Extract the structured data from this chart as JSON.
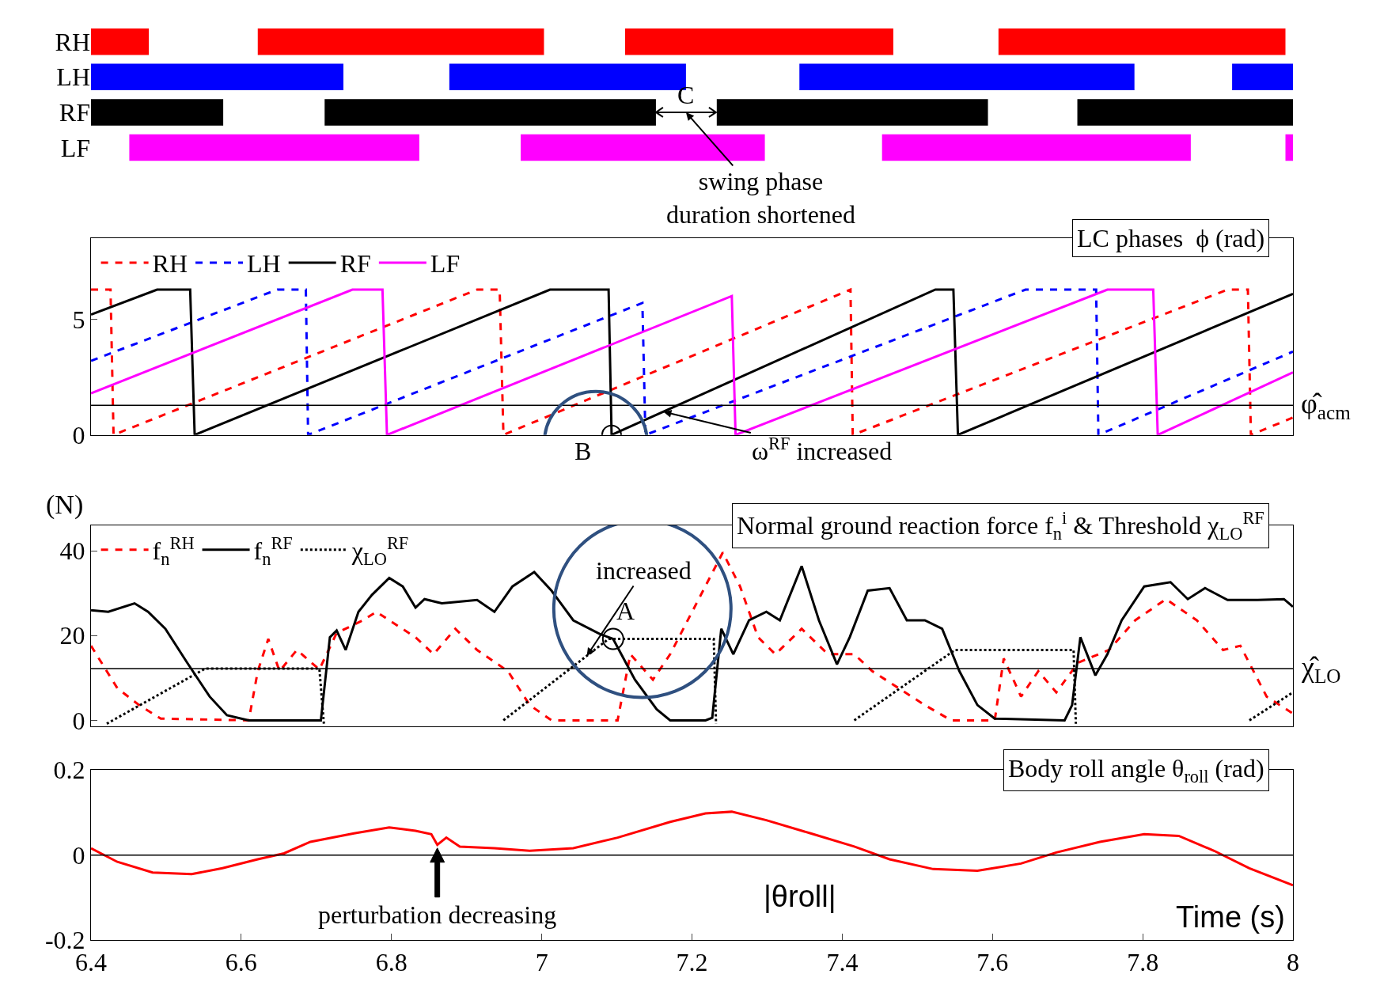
{
  "chart_data": [
    {
      "type": "bar",
      "orientation": "horizontal",
      "categories": [
        "RH",
        "LH",
        "RF",
        "LF"
      ],
      "xlim": [
        6.4,
        8.0
      ],
      "tick_labels": "y",
      "series": [
        {
          "colors": [
            "#ff0000",
            "#0000ff",
            "#000000",
            "#ff00ff"
          ],
          "base": [
            6.4,
            6.4,
            6.4,
            6.451
          ],
          "values": [
            0.077,
            0.336,
            0.176,
            0.386
          ]
        },
        {
          "colors": [
            "#ff0000",
            "#0000ff",
            "#000000",
            "#ff00ff"
          ],
          "base": [
            6.622,
            6.877,
            6.711,
            6.972
          ],
          "values": [
            0.381,
            0.315,
            0.441,
            0.325
          ]
        },
        {
          "colors": [
            "#ff0000",
            "#0000ff",
            "#000000",
            "#ff00ff"
          ],
          "base": [
            7.111,
            7.343,
            7.233,
            7.453
          ],
          "values": [
            0.357,
            0.446,
            0.361,
            0.411
          ]
        },
        {
          "colors": [
            "#ff0000",
            "#0000ff",
            "#000000",
            "#ff00ff"
          ],
          "base": [
            7.608,
            7.919,
            7.713,
            7.99
          ],
          "values": [
            0.382,
            0.081,
            0.287,
            0.01
          ]
        }
      ],
      "annotations": [
        "C",
        "swing phase duration shortened"
      ]
    },
    {
      "type": "line",
      "title": "LC phases  ϕ (rad)",
      "xlim": [
        6.4,
        8.0
      ],
      "ylim": [
        0,
        8.5
      ],
      "yticks": [
        0,
        5
      ],
      "tick_labels": "y",
      "legend": "top left",
      "series": [
        {
          "name": "RH",
          "color": "#ff0000",
          "line_style": "dashed",
          "x": [
            6.4,
            6.426,
            6.43,
            6.914,
            6.944,
            6.949,
            7.411,
            7.414,
            7.913,
            7.94,
            7.944,
            8.0
          ],
          "values": [
            6.28,
            6.28,
            0,
            6.28,
            6.28,
            0,
            6.28,
            0,
            6.28,
            6.28,
            0,
            0.75
          ]
        },
        {
          "name": "LH",
          "color": "#0000ff",
          "line_style": "dashed",
          "x": [
            6.4,
            6.648,
            6.686,
            6.689,
            7.134,
            7.138,
            7.644,
            7.738,
            7.741,
            8.0
          ],
          "values": [
            3.2,
            6.28,
            6.28,
            0,
            5.7,
            0,
            6.28,
            6.28,
            0,
            3.6
          ]
        },
        {
          "name": "RF",
          "color": "#000000",
          "line_style": "solid",
          "x": [
            6.4,
            6.488,
            6.532,
            6.538,
            7.011,
            7.089,
            7.093,
            7.524,
            7.548,
            7.554,
            8.0
          ],
          "values": [
            5.2,
            6.28,
            6.28,
            0,
            6.28,
            6.28,
            0,
            6.28,
            6.28,
            0,
            6.1
          ]
        },
        {
          "name": "LF",
          "color": "#ff00ff",
          "line_style": "solid",
          "x": [
            6.4,
            6.748,
            6.788,
            6.794,
            7.253,
            7.258,
            7.753,
            7.814,
            7.82,
            8.0
          ],
          "values": [
            1.8,
            6.28,
            6.28,
            0,
            6.0,
            0,
            6.28,
            6.28,
            0,
            2.7
          ]
        }
      ],
      "ref_lines": [
        {
          "axis": "y",
          "value": 1.28,
          "label": "φ̂$_{acm}$"
        }
      ],
      "annotations": [
        {
          "text": "B",
          "x": 7.093,
          "y": 0
        },
        {
          "text": "ω$^{RF}$ increased",
          "x": 7.162,
          "y": 1.0
        }
      ]
    },
    {
      "type": "line",
      "title": "Normal ground reaction force f$_{n}$$^{i}$ & Threshold χ$_{LO}$$^{RF}$",
      "ylabel": "(N)",
      "xlim": [
        6.4,
        8.0
      ],
      "ylim": [
        -1.5,
        46
      ],
      "yticks": [
        0,
        20,
        40
      ],
      "tick_labels": "y",
      "legend": "top left",
      "series": [
        {
          "name": "f$_{n}$$^{RH}$",
          "color": "#ff0000",
          "line_style": "dashed",
          "x": [
            6.4,
            6.435,
            6.464,
            6.493,
            6.61,
            6.622,
            6.636,
            6.651,
            6.674,
            6.704,
            6.727,
            6.762,
            6.78,
            6.797,
            6.832,
            6.856,
            6.885,
            6.914,
            6.955,
            6.984,
            7.013,
            7.101,
            7.118,
            7.148,
            7.171,
            7.206,
            7.241,
            7.264,
            7.288,
            7.311,
            7.346,
            7.381,
            7.416,
            7.44,
            7.475,
            7.51,
            7.545,
            7.603,
            7.615,
            7.638,
            7.661,
            7.685,
            7.714,
            7.755,
            7.79,
            7.831,
            7.872,
            7.907,
            7.93,
            7.965,
            8.0
          ],
          "values": [
            17.6,
            7.6,
            3.6,
            0.4,
            0,
            11.6,
            19.2,
            11.6,
            16.6,
            12,
            20.6,
            23.6,
            25.6,
            23.6,
            19.6,
            15.6,
            21.6,
            16.6,
            11.6,
            3.6,
            0,
            0,
            15.6,
            9.6,
            15.6,
            27.6,
            39.6,
            31.6,
            19.6,
            15.6,
            21.6,
            15.6,
            15.6,
            11.6,
            7.6,
            3.6,
            0,
            0,
            14.6,
            5.6,
            11.6,
            6.6,
            13.6,
            16.6,
            23.6,
            28.6,
            23.6,
            16.6,
            17.6,
            5.6,
            1.6
          ]
        },
        {
          "name": "f$_{n}$$^{RF}$",
          "color": "#000000",
          "line_style": "solid",
          "x": [
            6.4,
            6.423,
            6.458,
            6.476,
            6.499,
            6.528,
            6.558,
            6.581,
            6.61,
            6.692,
            6.706,
            6.718,
            6.727,
            6.739,
            6.756,
            6.774,
            6.797,
            6.815,
            6.832,
            6.844,
            6.867,
            6.914,
            6.937,
            6.961,
            6.99,
            7.013,
            7.042,
            7.077,
            7.095,
            7.124,
            7.153,
            7.171,
            7.218,
            7.227,
            7.239,
            7.255,
            7.276,
            7.299,
            7.317,
            7.346,
            7.369,
            7.393,
            7.41,
            7.434,
            7.463,
            7.486,
            7.51,
            7.533,
            7.556,
            7.58,
            7.603,
            7.696,
            7.706,
            7.717,
            7.737,
            7.753,
            7.772,
            7.802,
            7.837,
            7.86,
            7.883,
            7.913,
            7.953,
            7.988,
            8.0
          ],
          "values": [
            26,
            25.6,
            27.6,
            25.6,
            21.6,
            13.6,
            5.6,
            1.2,
            0,
            0,
            0,
            19.6,
            21.2,
            16.6,
            25.6,
            29.6,
            33.6,
            31.6,
            26.6,
            28.6,
            27.6,
            28.4,
            25.6,
            31.6,
            35,
            30.6,
            23.6,
            20.4,
            19.2,
            9.6,
            2.6,
            0,
            0,
            0.6,
            21.6,
            15.6,
            23.6,
            25.6,
            23.6,
            36.4,
            23.6,
            13.2,
            19.6,
            30.6,
            31.2,
            23.6,
            23.6,
            21.6,
            11.6,
            3.6,
            0.4,
            0,
            3.6,
            19.6,
            10.6,
            15.6,
            23.6,
            31.6,
            32.6,
            28.6,
            31.2,
            28.4,
            28.4,
            28.6,
            26.8
          ]
        },
        {
          "name": "χ$_{LO}$$^{RF}$",
          "color": "#000000",
          "line_style": "dotted",
          "x": [
            6.421,
            6.552,
            6.704,
            6.71,
            6.8,
            6.949,
            7.089,
            7.229,
            7.232,
            7.3,
            7.416,
            7.55,
            7.708,
            7.711,
            7.8,
            7.942,
            8.0
          ],
          "values": [
            -0.8,
            12.2,
            12.2,
            -0.8,
            null,
            0,
            19.2,
            19.2,
            -0.8,
            null,
            0,
            16.6,
            16.6,
            -0.8,
            null,
            0,
            6.6
          ]
        }
      ],
      "ref_lines": [
        {
          "axis": "y",
          "value": 12.2,
          "label": "χ̂$_{LO}$"
        }
      ],
      "annotations": [
        {
          "text": "increased",
          "x": 7.06,
          "y": 15.2
        },
        {
          "text": "A",
          "x": 7.095,
          "y": 19.2
        }
      ]
    },
    {
      "type": "line",
      "title": "Body roll angle θ$_{roll}$ (rad)",
      "xlabel": "Time (s)",
      "xlim": [
        6.4,
        8.0
      ],
      "xticks": [
        6.4,
        6.6,
        6.8,
        7,
        7.2,
        7.4,
        7.6,
        7.8,
        8
      ],
      "ylim": [
        -0.2,
        0.2
      ],
      "yticks": [
        -0.2,
        0,
        0.2
      ],
      "series": [
        {
          "color": "#ff0000",
          "line_style": "solid",
          "x": [
            6.4,
            6.435,
            6.482,
            6.534,
            6.575,
            6.622,
            6.657,
            6.692,
            6.75,
            6.797,
            6.832,
            6.853,
            6.861,
            6.873,
            6.891,
            6.937,
            6.984,
            7.042,
            7.101,
            7.171,
            7.218,
            7.253,
            7.299,
            7.358,
            7.416,
            7.463,
            7.521,
            7.58,
            7.638,
            7.685,
            7.743,
            7.802,
            7.848,
            7.895,
            7.942,
            8.0
          ],
          "values": [
            0.016,
            -0.016,
            -0.041,
            -0.045,
            -0.031,
            -0.01,
            0.004,
            0.031,
            0.051,
            0.065,
            0.057,
            0.049,
            0.024,
            0.041,
            0.02,
            0.016,
            0.01,
            0.016,
            0.041,
            0.078,
            0.098,
            0.102,
            0.082,
            0.051,
            0.02,
            -0.01,
            -0.033,
            -0.037,
            -0.02,
            0.006,
            0.031,
            0.049,
            0.045,
            0.01,
            -0.031,
            -0.071
          ]
        }
      ],
      "ref_lines": [
        {
          "axis": "y",
          "value": 0
        }
      ],
      "annotations": [
        {
          "text": "perturbation decreasing",
          "x": 6.861,
          "y": 0.024
        },
        "|θroll|"
      ]
    }
  ]
}
